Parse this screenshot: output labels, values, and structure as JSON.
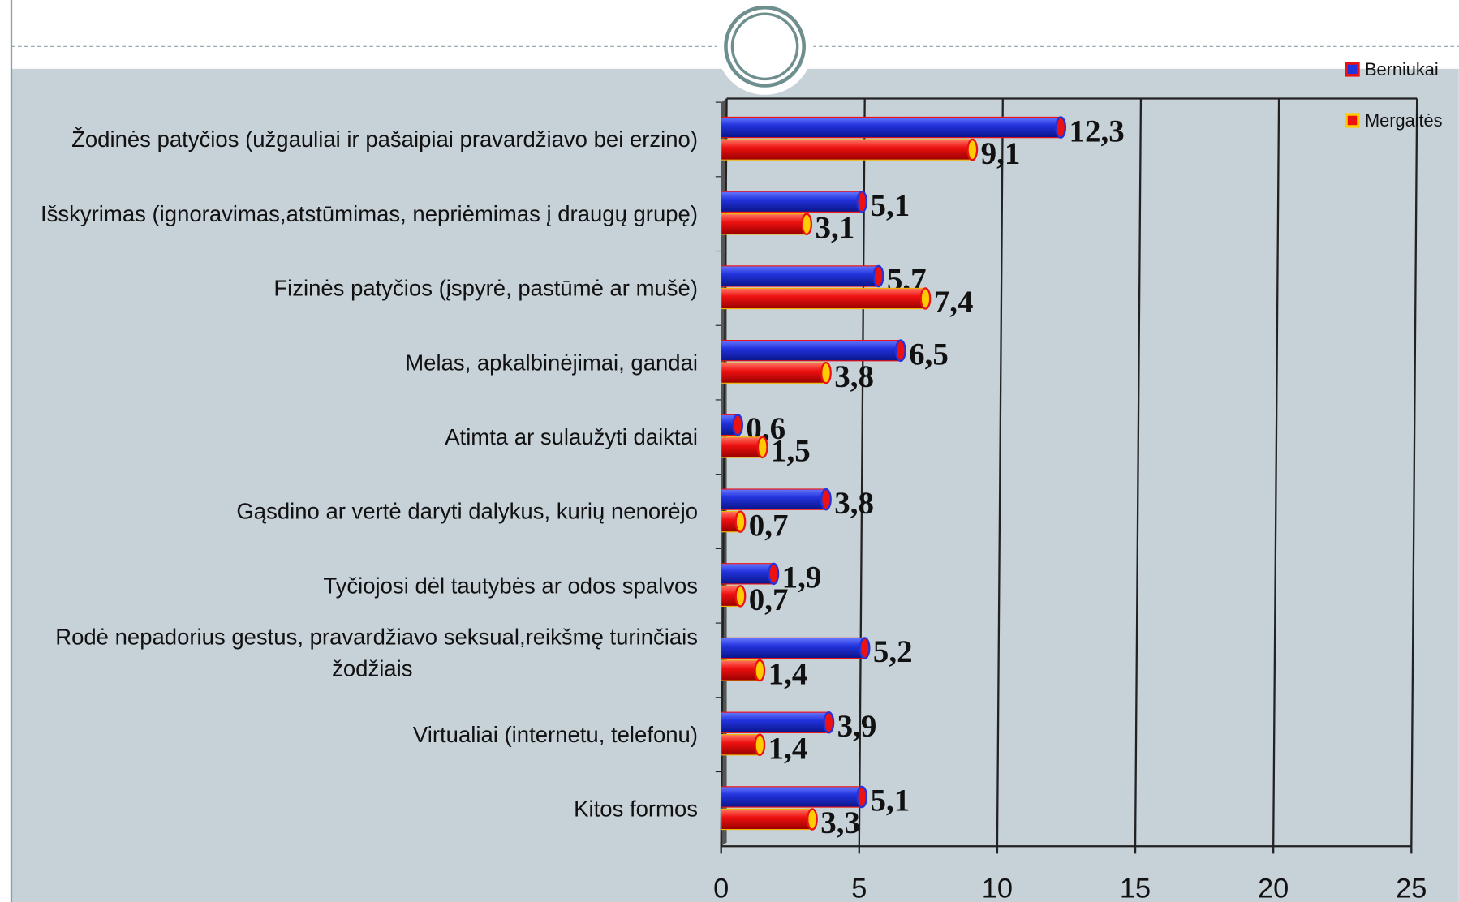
{
  "chart_data": {
    "type": "bar",
    "orientation": "horizontal",
    "categories": [
      "Žodinės patyčios (užgauliai ir pašaipiai pravardžiavo bei erzino)",
      "Išskyrimas (ignoravimas,atstūmimas, nepriėmimas į draugų grupę)",
      "Fizinės patyčios (įspyrė, pastūmė ar mušė)",
      "Melas, apkalbinėjimai, gandai",
      "Atimta ar sulaužyti daiktai",
      "Gąsdino ar vertė daryti dalykus, kurių nenorėjo",
      "Tyčiojosi dėl tautybės ar odos spalvos",
      "Rodė nepadorius gestus, pravardžiavo seksual,reikšmę turinčiais žodžiais",
      "Virtualiai (internetu, telefonu)",
      "Kitos formos"
    ],
    "series": [
      {
        "name": "Berniukai",
        "color": "#2233dd",
        "values": [
          12.3,
          5.1,
          5.7,
          6.5,
          0.6,
          3.8,
          1.9,
          5.2,
          3.9,
          5.1
        ],
        "value_labels": [
          "12,3",
          "5,1",
          "5,7",
          "6,5",
          "0,6",
          "3,8",
          "1,9",
          "5,2",
          "3,9",
          "5,1"
        ]
      },
      {
        "name": "Mergaitės",
        "color": "#ee1111",
        "values": [
          9.1,
          3.1,
          7.4,
          3.8,
          1.5,
          0.7,
          0.7,
          1.4,
          1.4,
          3.3
        ],
        "value_labels": [
          "9,1",
          "3,1",
          "7,4",
          "3,8",
          "1,5",
          "0,7",
          "0,7",
          "1,4",
          "1,4",
          "3,3"
        ]
      }
    ],
    "xlim": [
      0,
      25
    ],
    "xticks": [
      0,
      5,
      10,
      15,
      20,
      25
    ],
    "grid": true,
    "legend": "top-right"
  }
}
